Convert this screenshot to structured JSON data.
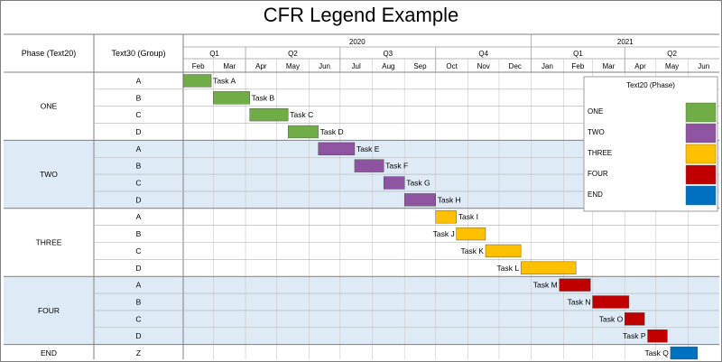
{
  "title": "CFR Legend Example",
  "header": {
    "phase_col": "Phase (Text20)",
    "group_col": "Text30 (Group)",
    "years": [
      {
        "label": "2020",
        "start": "2020-02-01",
        "end": "2021-01-01"
      },
      {
        "label": "2021",
        "start": "2021-01-01",
        "end": "2021-07-01"
      }
    ],
    "quarters": [
      {
        "label": "Q1",
        "start": "2020-02-01",
        "end": "2020-04-01"
      },
      {
        "label": "Q2",
        "start": "2020-04-01",
        "end": "2020-07-01"
      },
      {
        "label": "Q3",
        "start": "2020-07-01",
        "end": "2020-10-01"
      },
      {
        "label": "Q4",
        "start": "2020-10-01",
        "end": "2021-01-01"
      },
      {
        "label": "Q1",
        "start": "2021-01-01",
        "end": "2021-04-01"
      },
      {
        "label": "Q2",
        "start": "2021-04-01",
        "end": "2021-07-01"
      }
    ],
    "months": [
      "Feb",
      "Mar",
      "Apr",
      "May",
      "Jun",
      "Jul",
      "Aug",
      "Sep",
      "Oct",
      "Nov",
      "Dec",
      "Jan",
      "Feb",
      "Mar",
      "Apr",
      "May",
      "Jun"
    ]
  },
  "colors": {
    "ONE": "#70ad47",
    "TWO": "#8e54a1",
    "THREE": "#ffc000",
    "FOUR": "#c00000",
    "END": "#0070c0",
    "band": "#deebf7",
    "grid": "#9e9e9e"
  },
  "legend": {
    "title": "Text20 (Phase)",
    "placement": "top-right",
    "items": [
      "ONE",
      "TWO",
      "THREE",
      "FOUR",
      "END"
    ]
  },
  "chart_data": {
    "type": "gantt",
    "title": "CFR Legend Example",
    "x_range": [
      "2020-02-01",
      "2021-07-01"
    ],
    "tasks": [
      {
        "phase": "ONE",
        "group": "A",
        "name": "Task A",
        "start": "2020-02-01",
        "end": "2020-02-28"
      },
      {
        "phase": "ONE",
        "group": "B",
        "name": "Task B",
        "start": "2020-03-01",
        "end": "2020-04-05"
      },
      {
        "phase": "ONE",
        "group": "C",
        "name": "Task C",
        "start": "2020-04-05",
        "end": "2020-05-12"
      },
      {
        "phase": "ONE",
        "group": "D",
        "name": "Task D",
        "start": "2020-05-12",
        "end": "2020-06-10"
      },
      {
        "phase": "TWO",
        "group": "A",
        "name": "Task E",
        "start": "2020-06-10",
        "end": "2020-07-15"
      },
      {
        "phase": "TWO",
        "group": "B",
        "name": "Task F",
        "start": "2020-07-15",
        "end": "2020-08-12"
      },
      {
        "phase": "TWO",
        "group": "C",
        "name": "Task G",
        "start": "2020-08-12",
        "end": "2020-09-01"
      },
      {
        "phase": "TWO",
        "group": "D",
        "name": "Task H",
        "start": "2020-09-01",
        "end": "2020-10-01"
      },
      {
        "phase": "THREE",
        "group": "A",
        "name": "Task I",
        "start": "2020-10-01",
        "end": "2020-10-21"
      },
      {
        "phase": "THREE",
        "group": "B",
        "name": "Task J",
        "start": "2020-10-21",
        "end": "2020-11-18"
      },
      {
        "phase": "THREE",
        "group": "C",
        "name": "Task K",
        "start": "2020-11-18",
        "end": "2020-12-22"
      },
      {
        "phase": "THREE",
        "group": "D",
        "name": "Task L",
        "start": "2020-12-22",
        "end": "2021-02-13"
      },
      {
        "phase": "FOUR",
        "group": "A",
        "name": "Task M",
        "start": "2021-01-28",
        "end": "2021-02-27"
      },
      {
        "phase": "FOUR",
        "group": "B",
        "name": "Task N",
        "start": "2021-03-01",
        "end": "2021-04-05"
      },
      {
        "phase": "FOUR",
        "group": "C",
        "name": "Task O",
        "start": "2021-04-01",
        "end": "2021-04-20"
      },
      {
        "phase": "FOUR",
        "group": "D",
        "name": "Task P",
        "start": "2021-04-23",
        "end": "2021-05-12"
      },
      {
        "phase": "END",
        "group": "Z",
        "name": "Task Q",
        "start": "2021-05-15",
        "end": "2021-06-10"
      }
    ]
  }
}
